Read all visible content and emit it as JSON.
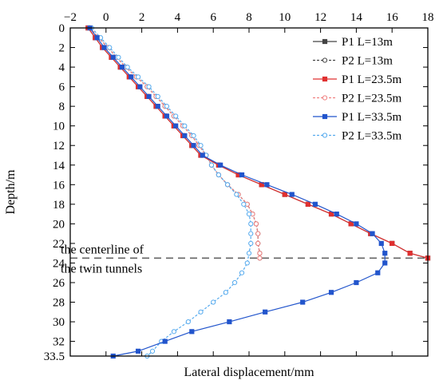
{
  "chart_data": {
    "type": "line",
    "xlabel": "Lateral displacement/mm",
    "ylabel": "Depth/m",
    "x_axis_position": "top",
    "y_axis_inverted": true,
    "xlim": [
      -2,
      18
    ],
    "ylim": [
      0,
      33.5
    ],
    "x_ticks": [
      "−2",
      "0",
      "2",
      "4",
      "6",
      "8",
      "10",
      "12",
      "14",
      "16",
      "18"
    ],
    "y_ticks": [
      "0",
      "2",
      "4",
      "6",
      "8",
      "10",
      "12",
      "14",
      "16",
      "18",
      "20",
      "22",
      "24",
      "26",
      "28",
      "30",
      "32",
      "33.5"
    ],
    "legend_position": "top-right",
    "annotation": {
      "lines": [
        "the centerline of",
        "the twin tunnels"
      ],
      "depth": 23.5,
      "style": "dashed",
      "color": "#666666"
    },
    "series": [
      {
        "name": "P1 L=13m",
        "color": "#444444",
        "marker": "square",
        "filled": true,
        "points": [
          [
            -1.0,
            0
          ],
          [
            -0.6,
            1
          ],
          [
            -0.2,
            2
          ],
          [
            0.3,
            3
          ],
          [
            0.8,
            4
          ],
          [
            1.3,
            5
          ],
          [
            1.8,
            6
          ],
          [
            2.3,
            7
          ],
          [
            2.8,
            8
          ],
          [
            3.3,
            9
          ],
          [
            3.8,
            10
          ],
          [
            4.3,
            11
          ],
          [
            4.8,
            12
          ],
          [
            5.3,
            13
          ],
          [
            6.3,
            14
          ],
          [
            7.4,
            15
          ],
          [
            8.7,
            16
          ],
          [
            10.0,
            17
          ],
          [
            11.3,
            18
          ],
          [
            12.6,
            19
          ],
          [
            13.7,
            20
          ],
          [
            14.8,
            21
          ],
          [
            16.0,
            22
          ],
          [
            17.0,
            23
          ],
          [
            18.0,
            23.5
          ]
        ]
      },
      {
        "name": "P2 L=13m",
        "color": "#444444",
        "marker": "circle",
        "filled": false,
        "points": [
          [
            -0.9,
            0
          ],
          [
            -0.4,
            1
          ],
          [
            0.1,
            2
          ],
          [
            0.6,
            3
          ],
          [
            1.1,
            4
          ],
          [
            1.7,
            5
          ],
          [
            2.3,
            6
          ],
          [
            2.8,
            7
          ],
          [
            3.3,
            8
          ],
          [
            3.8,
            9
          ],
          [
            4.3,
            10
          ],
          [
            4.8,
            11
          ],
          [
            5.2,
            12
          ],
          [
            5.6,
            13
          ],
          [
            5.9,
            14
          ],
          [
            6.3,
            15
          ],
          [
            6.8,
            16
          ],
          [
            7.4,
            17
          ],
          [
            7.9,
            18
          ],
          [
            8.2,
            19
          ],
          [
            8.4,
            20
          ],
          [
            8.5,
            21
          ],
          [
            8.5,
            22
          ],
          [
            8.6,
            23
          ],
          [
            8.6,
            23.5
          ]
        ]
      },
      {
        "name": "P1 L=23.5m",
        "color": "#e03030",
        "marker": "square",
        "filled": true,
        "points": [
          [
            -1.0,
            0
          ],
          [
            -0.6,
            1
          ],
          [
            -0.2,
            2
          ],
          [
            0.3,
            3
          ],
          [
            0.8,
            4
          ],
          [
            1.3,
            5
          ],
          [
            1.8,
            6
          ],
          [
            2.3,
            7
          ],
          [
            2.8,
            8
          ],
          [
            3.3,
            9
          ],
          [
            3.8,
            10
          ],
          [
            4.3,
            11
          ],
          [
            4.8,
            12
          ],
          [
            5.3,
            13
          ],
          [
            6.3,
            14
          ],
          [
            7.4,
            15
          ],
          [
            8.7,
            16
          ],
          [
            10.0,
            17
          ],
          [
            11.3,
            18
          ],
          [
            12.6,
            19
          ],
          [
            13.7,
            20
          ],
          [
            14.8,
            21
          ],
          [
            16.0,
            22
          ],
          [
            17.0,
            23
          ],
          [
            18.0,
            23.5
          ]
        ]
      },
      {
        "name": "P2 L=23.5m",
        "color": "#f08080",
        "marker": "circle",
        "filled": false,
        "points": [
          [
            -0.9,
            0
          ],
          [
            -0.4,
            1
          ],
          [
            0.1,
            2
          ],
          [
            0.6,
            3
          ],
          [
            1.1,
            4
          ],
          [
            1.7,
            5
          ],
          [
            2.3,
            6
          ],
          [
            2.8,
            7
          ],
          [
            3.3,
            8
          ],
          [
            3.8,
            9
          ],
          [
            4.3,
            10
          ],
          [
            4.8,
            11
          ],
          [
            5.2,
            12
          ],
          [
            5.6,
            13
          ],
          [
            5.9,
            14
          ],
          [
            6.3,
            15
          ],
          [
            6.8,
            16
          ],
          [
            7.4,
            17
          ],
          [
            7.9,
            18
          ],
          [
            8.2,
            19
          ],
          [
            8.4,
            20
          ],
          [
            8.5,
            21
          ],
          [
            8.5,
            22
          ],
          [
            8.6,
            23
          ],
          [
            8.6,
            23.5
          ]
        ]
      },
      {
        "name": "P1 L=33.5m",
        "color": "#2255cc",
        "marker": "square",
        "filled": true,
        "points": [
          [
            -0.9,
            0
          ],
          [
            -0.5,
            1
          ],
          [
            -0.1,
            2
          ],
          [
            0.4,
            3
          ],
          [
            0.9,
            4
          ],
          [
            1.4,
            5
          ],
          [
            1.9,
            6
          ],
          [
            2.4,
            7
          ],
          [
            2.9,
            8
          ],
          [
            3.4,
            9
          ],
          [
            3.9,
            10
          ],
          [
            4.4,
            11
          ],
          [
            4.9,
            12
          ],
          [
            5.4,
            13
          ],
          [
            6.4,
            14
          ],
          [
            7.6,
            15
          ],
          [
            9.0,
            16
          ],
          [
            10.4,
            17
          ],
          [
            11.7,
            18
          ],
          [
            12.9,
            19
          ],
          [
            14.0,
            20
          ],
          [
            14.9,
            21
          ],
          [
            15.4,
            22
          ],
          [
            15.6,
            23
          ],
          [
            15.6,
            24
          ],
          [
            15.2,
            25
          ],
          [
            14.0,
            26
          ],
          [
            12.6,
            27
          ],
          [
            11.0,
            28
          ],
          [
            8.9,
            29
          ],
          [
            6.9,
            30
          ],
          [
            4.8,
            31
          ],
          [
            3.3,
            32
          ],
          [
            1.8,
            33
          ],
          [
            0.4,
            33.5
          ]
        ]
      },
      {
        "name": "P2 L=33.5m",
        "color": "#55aaee",
        "marker": "circle",
        "filled": false,
        "points": [
          [
            -0.8,
            0
          ],
          [
            -0.3,
            1
          ],
          [
            0.2,
            2
          ],
          [
            0.7,
            3
          ],
          [
            1.2,
            4
          ],
          [
            1.8,
            5
          ],
          [
            2.4,
            6
          ],
          [
            2.9,
            7
          ],
          [
            3.4,
            8
          ],
          [
            3.9,
            9
          ],
          [
            4.4,
            10
          ],
          [
            4.9,
            11
          ],
          [
            5.3,
            12
          ],
          [
            5.6,
            13
          ],
          [
            5.9,
            14
          ],
          [
            6.3,
            15
          ],
          [
            6.8,
            16
          ],
          [
            7.3,
            17
          ],
          [
            7.7,
            18
          ],
          [
            8.0,
            19
          ],
          [
            8.1,
            20
          ],
          [
            8.1,
            21
          ],
          [
            8.1,
            22
          ],
          [
            8.0,
            23
          ],
          [
            7.9,
            24
          ],
          [
            7.6,
            25
          ],
          [
            7.2,
            26
          ],
          [
            6.7,
            27
          ],
          [
            6.0,
            28
          ],
          [
            5.3,
            29
          ],
          [
            4.6,
            30
          ],
          [
            3.8,
            31
          ],
          [
            3.1,
            32
          ],
          [
            2.6,
            33
          ],
          [
            2.3,
            33.5
          ]
        ]
      }
    ]
  }
}
